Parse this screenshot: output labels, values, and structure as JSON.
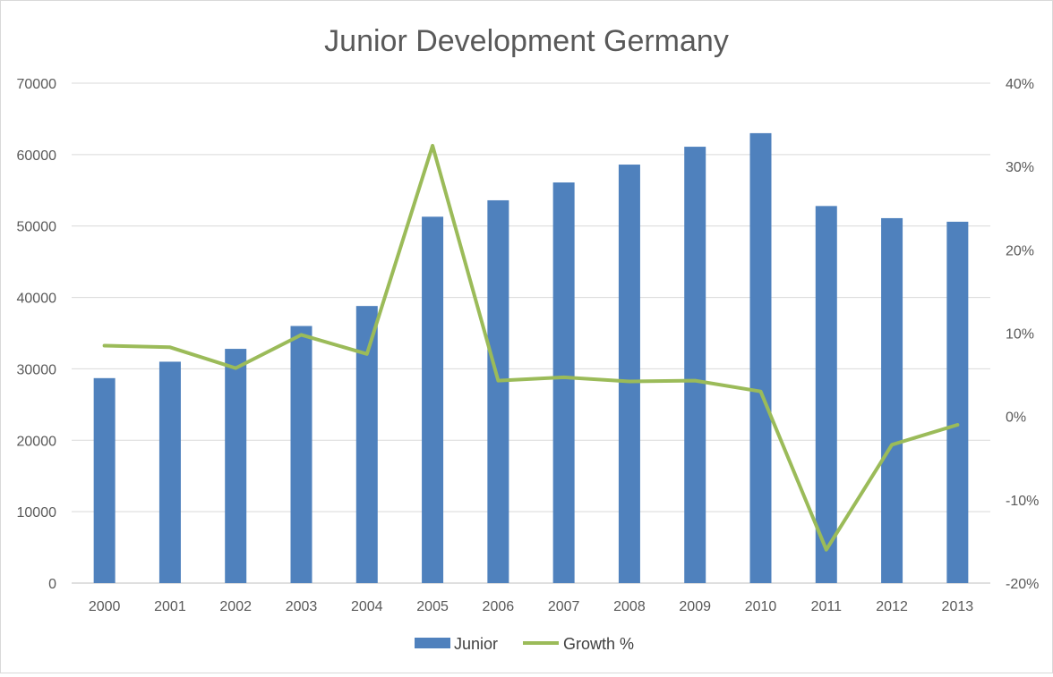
{
  "chart_data": {
    "type": "bar",
    "title": "Junior Development Germany",
    "categories": [
      "2000",
      "2001",
      "2002",
      "2003",
      "2004",
      "2005",
      "2006",
      "2007",
      "2008",
      "2009",
      "2010",
      "2011",
      "2012",
      "2013"
    ],
    "series": [
      {
        "name": "Junior",
        "type": "bar",
        "axis": "left",
        "color": "#4f81bd",
        "values": [
          28700,
          31000,
          32800,
          36000,
          38800,
          51300,
          53600,
          56100,
          58600,
          61100,
          63000,
          52800,
          51100,
          50600
        ]
      },
      {
        "name": "Growth %",
        "type": "line",
        "axis": "right",
        "color": "#9bbb59",
        "values": [
          8.5,
          8.3,
          5.8,
          9.8,
          7.5,
          32.5,
          4.3,
          4.7,
          4.2,
          4.3,
          3.0,
          -16.0,
          -3.4,
          -1.0
        ]
      }
    ],
    "y_left": {
      "min": 0,
      "max": 70000,
      "ticks": [
        0,
        10000,
        20000,
        30000,
        40000,
        50000,
        60000,
        70000
      ],
      "tick_labels": [
        "0",
        "10000",
        "20000",
        "30000",
        "40000",
        "50000",
        "60000",
        "70000"
      ]
    },
    "y_right": {
      "min": -20,
      "max": 40,
      "ticks": [
        -20,
        -10,
        0,
        10,
        20,
        30,
        40
      ],
      "tick_labels": [
        "-20%",
        "-10%",
        "0%",
        "10%",
        "20%",
        "30%",
        "40%"
      ]
    },
    "grid": true,
    "legend_position": "bottom"
  }
}
